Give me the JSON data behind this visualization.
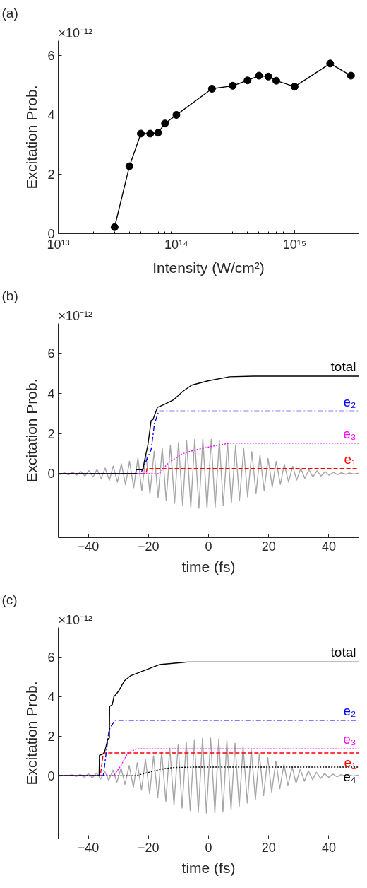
{
  "chart_data": [
    {
      "type": "line",
      "title": "(a)",
      "annotations": [
        "×10⁻¹²"
      ],
      "xlabel": "Intensity (W/cm²)",
      "ylabel": "Excitation Prob.",
      "log": "x",
      "marker": "circle",
      "line_style": "solid",
      "grid": false,
      "xlim": [
        10000000000000.0,
        3500000000000000.0
      ],
      "ylim": [
        0,
        6.5
      ],
      "xticks": [
        {
          "value": 10000000000000.0,
          "label": "10¹³"
        },
        {
          "value": 20000000000000.0,
          "label": null
        },
        {
          "value": 30000000000000.0,
          "label": null
        },
        {
          "value": 40000000000000.0,
          "label": null
        },
        {
          "value": 50000000000000.0,
          "label": null
        },
        {
          "value": 60000000000000.0,
          "label": null
        },
        {
          "value": 70000000000000.0,
          "label": null
        },
        {
          "value": 80000000000000.0,
          "label": null
        },
        {
          "value": 90000000000000.0,
          "label": null
        },
        {
          "value": 100000000000000.0,
          "label": "10¹⁴"
        },
        {
          "value": 200000000000000.0,
          "label": null
        },
        {
          "value": 300000000000000.0,
          "label": null
        },
        {
          "value": 400000000000000.0,
          "label": null
        },
        {
          "value": 500000000000000.0,
          "label": null
        },
        {
          "value": 600000000000000.0,
          "label": null
        },
        {
          "value": 700000000000000.0,
          "label": null
        },
        {
          "value": 800000000000000.0,
          "label": null
        },
        {
          "value": 900000000000000.0,
          "label": null
        },
        {
          "value": 1000000000000000.0,
          "label": "10¹⁵"
        },
        {
          "value": 2000000000000000.0,
          "label": null
        },
        {
          "value": 3000000000000000.0,
          "label": null
        }
      ],
      "yticks": [
        0,
        2,
        4,
        6
      ],
      "series": [
        {
          "color": "#000000",
          "x": [
            30000000000000.0,
            40000000000000.0,
            50000000000000.0,
            60000000000000.0,
            70000000000000.0,
            80000000000000.0,
            100000000000000.0,
            200000000000000.0,
            300000000000000.0,
            400000000000000.0,
            500000000000000.0,
            600000000000000.0,
            700000000000000.0,
            1000000000000000.0,
            2000000000000000.0,
            3000000000000000.0
          ],
          "values": [
            0.22,
            2.27,
            3.37,
            3.37,
            3.4,
            3.71,
            4.0,
            4.88,
            4.98,
            5.16,
            5.32,
            5.29,
            5.15,
            4.95,
            5.73,
            5.32
          ]
        }
      ]
    },
    {
      "type": "line",
      "title": "(b)",
      "annotations": [
        "×10⁻¹²"
      ],
      "xlabel": "time (fs)",
      "ylabel": "Excitation Prob.",
      "grid": false,
      "xlim": [
        -50,
        50
      ],
      "ylim": [
        -3.2,
        7.5
      ],
      "xticks": [
        -40,
        -20,
        0,
        20,
        40
      ],
      "yticks": [
        0,
        2,
        4,
        6
      ],
      "series": [
        {
          "color": "#a6a6a6",
          "line_style": "solid",
          "x": [
            -50,
            -49.3,
            -47.9,
            -46.6,
            -45.2,
            -43.9,
            -42.5,
            -41.1,
            -39.8,
            -38.4,
            -37.1,
            -35.7,
            -34.4,
            -33.0,
            -31.7,
            -30.3,
            -29.0,
            -27.6,
            -26.3,
            -24.9,
            -23.5,
            -22.2,
            -20.8,
            -19.5,
            -18.1,
            -16.8,
            -15.4,
            -14.1,
            -12.7,
            -11.3,
            -10.0,
            -8.6,
            -7.3,
            -5.9,
            -4.6,
            -3.2,
            -1.9,
            -0.5,
            0.9,
            2.2,
            3.6,
            4.9,
            6.3,
            7.6,
            9.0,
            10.3,
            11.7,
            13.0,
            14.4,
            15.8,
            17.1,
            18.5,
            19.8,
            21.2,
            22.5,
            23.9,
            25.2,
            26.6,
            28.0,
            29.3,
            30.7,
            32.0,
            33.4,
            34.7,
            36.1,
            37.4,
            38.8,
            40.1,
            41.5,
            42.9,
            44.2,
            45.6,
            46.9,
            48.3,
            49.6,
            50
          ],
          "values": [
            0,
            -0.04,
            0.04,
            -0.06,
            0.07,
            -0.08,
            0.1,
            -0.12,
            0.15,
            -0.17,
            0.21,
            -0.24,
            0.28,
            -0.33,
            0.38,
            -0.43,
            0.49,
            -0.56,
            0.62,
            -0.7,
            0.78,
            -0.86,
            0.94,
            -1.02,
            1.11,
            -1.19,
            1.27,
            -1.34,
            1.42,
            -1.49,
            1.55,
            -1.6,
            1.65,
            -1.69,
            1.71,
            -1.73,
            1.73,
            -1.72,
            1.71,
            -1.68,
            1.64,
            -1.59,
            1.54,
            -1.47,
            1.4,
            -1.33,
            1.25,
            -1.17,
            1.09,
            -1.0,
            0.92,
            -0.84,
            0.76,
            -0.68,
            0.61,
            -0.54,
            0.48,
            -0.42,
            0.37,
            -0.32,
            0.27,
            -0.23,
            0.2,
            -0.17,
            0.14,
            -0.12,
            0.1,
            -0.08,
            0.07,
            -0.05,
            0.04,
            -0.03,
            0.03,
            -0.02,
            0.02,
            0
          ]
        },
        {
          "name": "e₁",
          "color": "#ff0000",
          "line_style": "dashed",
          "x": [
            -50,
            -20.8,
            -20.5,
            50
          ],
          "values": [
            0,
            0,
            0.25,
            0.25
          ]
        },
        {
          "name": "e₃",
          "color": "#ff00ff",
          "line_style": "dotted",
          "x": [
            -50,
            -16.4,
            -13.3,
            -8.6,
            -4,
            0.7,
            6.9,
            50
          ],
          "values": [
            0,
            0,
            0.55,
            1.0,
            1.2,
            1.35,
            1.52,
            1.52
          ]
        },
        {
          "name": "e₂",
          "color": "#0000ff",
          "line_style": "dashdot",
          "x": [
            -50,
            -22.6,
            -19.1,
            -18,
            -16.6,
            50
          ],
          "values": [
            0,
            0,
            1.2,
            2.48,
            3.12,
            3.12
          ]
        },
        {
          "name": "total",
          "color": "#000000",
          "line_style": "solid",
          "x": [
            -50,
            -24.2,
            -24.1,
            -21.8,
            -21.4,
            -20.2,
            -19.1,
            -18.5,
            -17,
            -14.8,
            -11.7,
            -8.6,
            -5.6,
            0,
            7,
            15,
            50
          ],
          "values": [
            0,
            0,
            0.2,
            0.2,
            0.58,
            1.42,
            2.65,
            2.7,
            3.31,
            3.45,
            3.68,
            4.1,
            4.42,
            4.64,
            4.84,
            4.87,
            4.87
          ]
        }
      ]
    },
    {
      "type": "line",
      "title": "(c)",
      "annotations": [
        "×10⁻¹²"
      ],
      "xlabel": "time (fs)",
      "ylabel": "Excitation Prob.",
      "grid": false,
      "xlim": [
        -50,
        50
      ],
      "ylim": [
        -3.2,
        7.5
      ],
      "xticks": [
        -40,
        -20,
        0,
        20,
        40
      ],
      "yticks": [
        0,
        2,
        4,
        6
      ],
      "series": [
        {
          "color": "#a6a6a6",
          "line_style": "solid",
          "x": [
            -50,
            -49.4,
            -48.1,
            -46.7,
            -45.4,
            -44.0,
            -42.7,
            -41.3,
            -40.0,
            -38.6,
            -37.2,
            -35.9,
            -34.5,
            -33.2,
            -31.8,
            -30.5,
            -29.1,
            -27.8,
            -26.4,
            -25.0,
            -23.7,
            -22.3,
            -21.0,
            -19.6,
            -18.3,
            -16.9,
            -15.6,
            -14.2,
            -12.9,
            -11.5,
            -10.1,
            -8.8,
            -7.4,
            -6.1,
            -4.7,
            -3.4,
            -2.0,
            -0.7,
            0.7,
            2.1,
            3.4,
            4.8,
            6.1,
            7.5,
            8.8,
            10.2,
            11.5,
            12.9,
            14.2,
            15.6,
            16.9,
            18.3,
            19.7,
            21.0,
            22.4,
            23.7,
            25.1,
            26.4,
            27.8,
            29.1,
            30.5,
            31.9,
            33.2,
            34.6,
            35.9,
            37.3,
            38.6,
            40.0,
            41.4,
            42.7,
            44.1,
            45.4,
            46.8,
            48.1,
            49.5,
            50
          ],
          "values": [
            0,
            -0.02,
            null,
            null,
            0.04,
            -0.05,
            0.06,
            -0.08,
            0.09,
            -0.11,
            0.14,
            -0.17,
            0.2,
            -0.24,
            0.28,
            -0.33,
            0.38,
            -0.44,
            0.51,
            -0.58,
            0.66,
            -0.74,
            0.83,
            -0.92,
            1.01,
            -1.11,
            1.2,
            -1.3,
            1.39,
            -1.48,
            1.57,
            -1.64,
            1.71,
            -1.77,
            1.82,
            -1.86,
            1.89,
            -1.9,
            1.9,
            -1.88,
            1.86,
            -1.82,
            1.77,
            -1.71,
            1.64,
            -1.56,
            1.48,
            -1.39,
            1.3,
            -1.2,
            1.11,
            -1.01,
            0.91,
            -0.83,
            0.74,
            -0.66,
            0.58,
            -0.51,
            0.44,
            -0.38,
            0.33,
            -0.28,
            0.24,
            -0.2,
            0.17,
            -0.14,
            0.11,
            -0.09,
            0.08,
            -0.06,
            0.05,
            -0.04,
            0.03,
            -0.02,
            0.02,
            0
          ]
        },
        {
          "name": "e₄",
          "color": "#000000",
          "line_style": "dotted",
          "x": [
            -50,
            -24.2,
            -21.1,
            -15.7,
            -11.9,
            -5,
            50
          ],
          "values": [
            0,
            0,
            0.12,
            0.33,
            0.41,
            0.43,
            0.43
          ]
        },
        {
          "name": "e₁",
          "color": "#ff0000",
          "line_style": "dashed",
          "x": [
            -50,
            -36,
            -35,
            50
          ],
          "values": [
            0,
            0,
            1.15,
            1.15
          ]
        },
        {
          "name": "e₃",
          "color": "#ff00ff",
          "line_style": "dotted",
          "x": [
            -50,
            -31.5,
            -29.2,
            -26.9,
            -23.8,
            50
          ],
          "values": [
            0,
            0,
            0.5,
            1.14,
            1.36,
            1.36
          ]
        },
        {
          "name": "e₂",
          "color": "#0000ff",
          "line_style": "dashdot",
          "x": [
            -50,
            -35,
            -33.1,
            -32.2,
            -31.2,
            50
          ],
          "values": [
            0,
            0,
            2.32,
            2.55,
            2.8,
            2.8
          ]
        },
        {
          "name": "total",
          "color": "#000000",
          "line_style": "solid",
          "x": [
            -50,
            -36.4,
            -36.3,
            -35,
            -34.6,
            -33.5,
            -33,
            -32.9,
            -32,
            -31.5,
            -30,
            -28,
            -26,
            -22.6,
            -16.4,
            -7,
            50
          ],
          "values": [
            0,
            0,
            1.03,
            1.1,
            1.19,
            1.85,
            1.9,
            3.5,
            3.6,
            3.99,
            4.26,
            4.8,
            5.05,
            5.25,
            5.62,
            5.75,
            5.75
          ]
        }
      ]
    }
  ]
}
